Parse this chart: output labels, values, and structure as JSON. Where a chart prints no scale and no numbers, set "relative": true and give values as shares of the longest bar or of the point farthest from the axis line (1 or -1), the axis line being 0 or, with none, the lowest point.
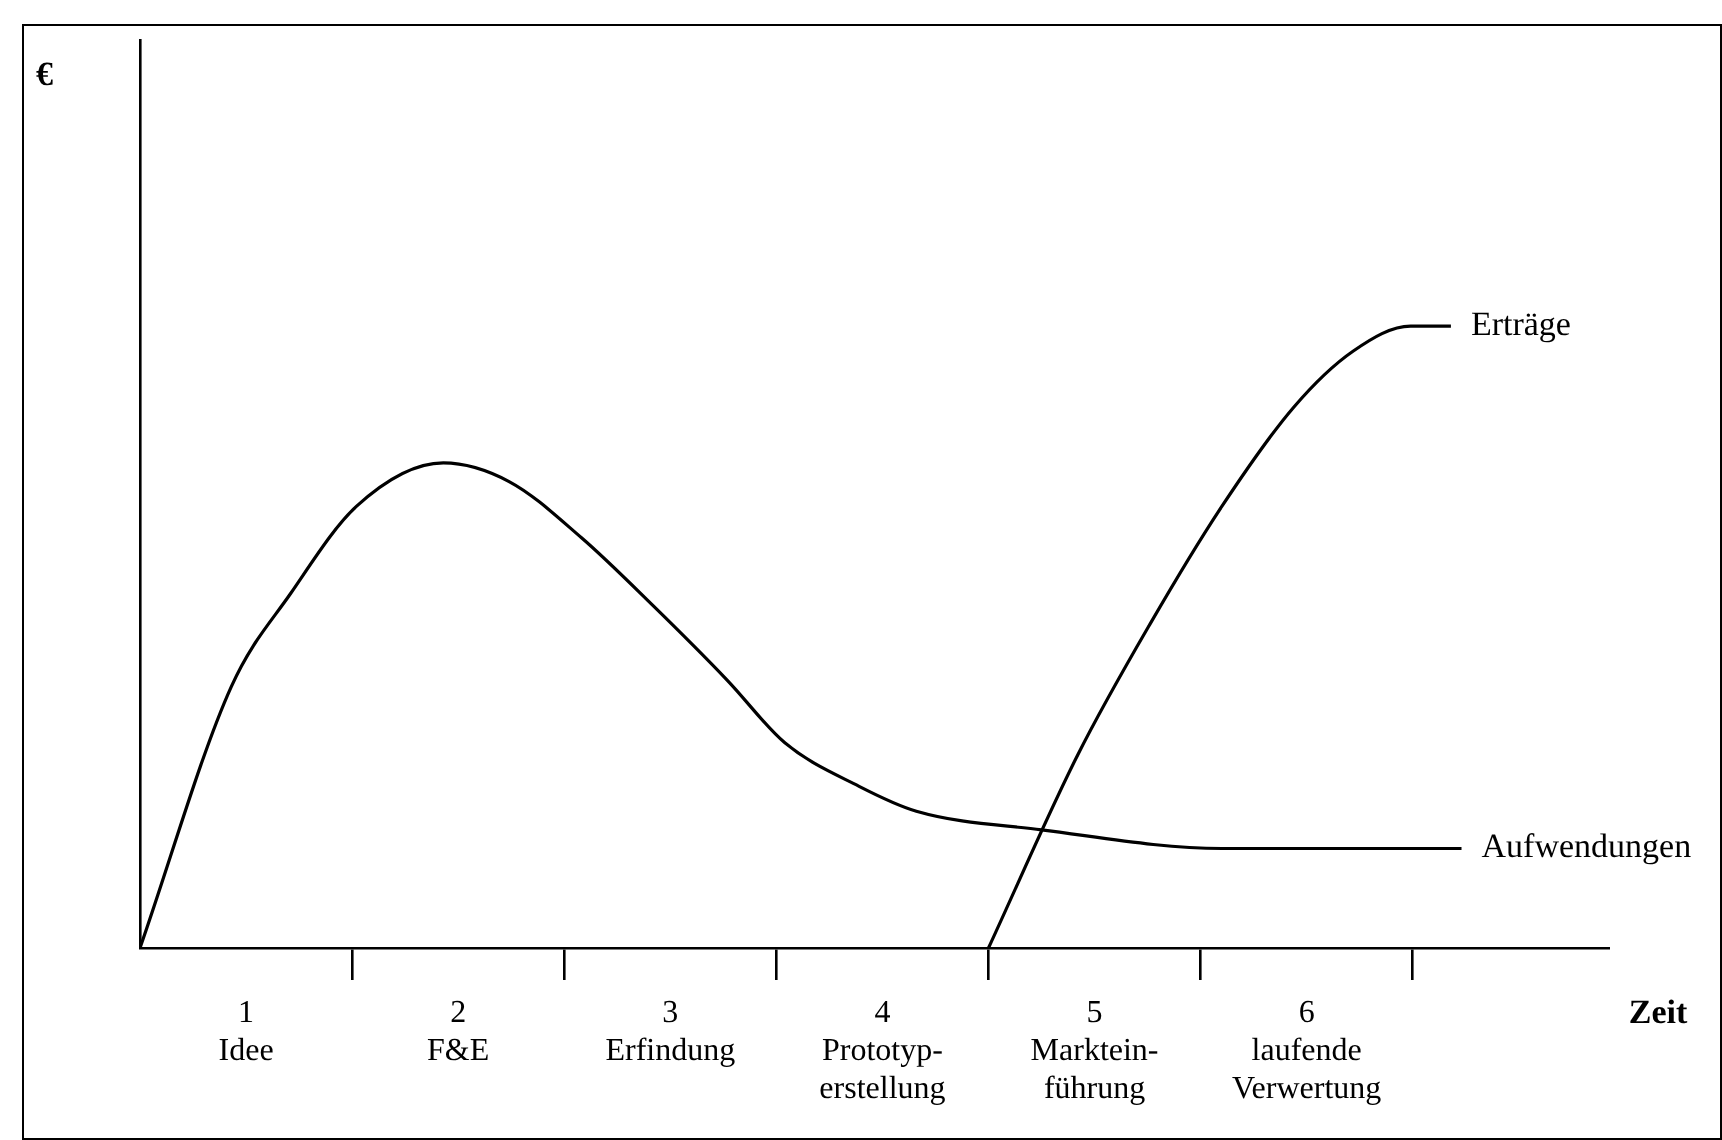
{
  "chart_data": {
    "type": "line",
    "relative": true,
    "xlabel": "Zeit",
    "annotations": [
      "€"
    ],
    "legend": false,
    "marker": "none",
    "xlim": [
      0,
      6.93
    ],
    "xticks": [
      {
        "value": 0.5,
        "label": "1\nIdee"
      },
      {
        "value": 1,
        "label": null
      },
      {
        "value": 1.5,
        "label": "2\nF&E"
      },
      {
        "value": 2,
        "label": null
      },
      {
        "value": 2.5,
        "label": "3\nErfindung"
      },
      {
        "value": 3,
        "label": null
      },
      {
        "value": 3.5,
        "label": "4\nPrototyp-\nerstellung"
      },
      {
        "value": 4,
        "label": null
      },
      {
        "value": 4.5,
        "label": "5\nMarktein-\nführung"
      },
      {
        "value": 5,
        "label": null
      },
      {
        "value": 5.5,
        "label": "6\nlaufende\nVerwertung"
      },
      {
        "value": 6,
        "label": null
      }
    ],
    "series": [
      {
        "name": "Erträge",
        "color": "#000000",
        "x": [
          4.0,
          4.42,
          4.76,
          5.1,
          5.44,
          5.72,
          5.99,
          6.18
        ],
        "values": [
          0,
          0.31,
          0.52,
          0.71,
          0.87,
          0.96,
          1,
          1
        ]
      },
      {
        "name": "Aufwendungen",
        "color": "#000000",
        "x": [
          0,
          0.43,
          0.71,
          1.02,
          1.43,
          1.74,
          2.08,
          2.42,
          2.77,
          3.04,
          3.39,
          3.66,
          4.25,
          5.1,
          6.23
        ],
        "values": [
          0,
          0.42,
          0.57,
          0.71,
          0.78,
          0.75,
          0.66,
          0.55,
          0.43,
          0.33,
          0.26,
          0.22,
          0.19,
          0.16,
          0.16
        ]
      }
    ]
  }
}
